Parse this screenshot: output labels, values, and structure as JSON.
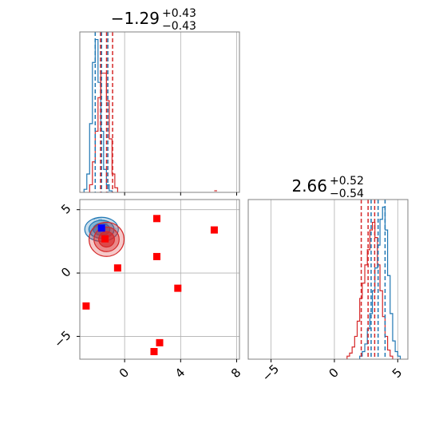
{
  "chart_data": {
    "type": "corner",
    "colors": {
      "series_a": "#1f77b4",
      "series_b": "#d62728",
      "marker_red": "#ff0000",
      "marker_blue": "#0000ff",
      "grid": "#b0b0b0",
      "axes": "#808080"
    },
    "parameters": [
      {
        "title": {
          "median": "−1.29",
          "plus": "+0.43",
          "minus": "−0.43"
        },
        "range": [
          -3.2,
          8.2
        ],
        "ticks": [
          0,
          4,
          8
        ],
        "quantiles_blue": [
          -2.1,
          -1.65,
          -1.2
        ],
        "quantiles_red": [
          -1.72,
          -1.29,
          -0.86
        ],
        "hist_blue": {
          "x0": -2.9,
          "dx": 0.2,
          "counts": [
            0.02,
            0.12,
            0.45,
            0.85,
            1.0,
            0.72,
            0.4,
            0.15,
            0.05,
            0.01
          ]
        },
        "hist_red": {
          "x0": -2.5,
          "dx": 0.2,
          "counts": [
            0.05,
            0.2,
            0.4,
            0.62,
            0.78,
            0.78,
            0.6,
            0.35,
            0.12,
            0.03
          ]
        },
        "outlier_red": {
          "x": 6.5,
          "count": 0.01
        }
      },
      {
        "title": {
          "median": "2.66",
          "plus": "+0.52",
          "minus": "−0.54"
        },
        "range": [
          -6.8,
          5.8
        ],
        "ticks": [
          -5,
          0,
          5
        ],
        "tick_labels": [
          "−5",
          "0",
          "5"
        ],
        "quantiles_blue": [
          2.9,
          3.45,
          4.0
        ],
        "quantiles_red": [
          2.12,
          2.66,
          3.18
        ],
        "hist_blue": {
          "x0": 2.0,
          "dx": 0.2,
          "counts": [
            0.02,
            0.05,
            0.1,
            0.2,
            0.3,
            0.45,
            0.6,
            0.75,
            0.92,
            1.0,
            0.85,
            0.55,
            0.3,
            0.12,
            0.05,
            0.02
          ]
        },
        "hist_red": {
          "x0": 1.0,
          "dx": 0.2,
          "counts": [
            0.02,
            0.04,
            0.08,
            0.15,
            0.25,
            0.4,
            0.5,
            0.62,
            0.72,
            0.85,
            0.9,
            0.8,
            0.62,
            0.45,
            0.28,
            0.15,
            0.06,
            0.02
          ]
        }
      }
    ],
    "scatter_ticks_y": [
      -5,
      0,
      5
    ],
    "scatter_tick_labels_y": [
      "−5",
      "0",
      "5"
    ],
    "scatter_range_y": [
      -6.8,
      5.8
    ],
    "red_squares": [
      {
        "x": -2.75,
        "y": -2.6
      },
      {
        "x": -1.4,
        "y": 2.7
      },
      {
        "x": -0.5,
        "y": 0.4
      },
      {
        "x": 2.3,
        "y": 4.3
      },
      {
        "x": 2.3,
        "y": 1.3
      },
      {
        "x": 3.8,
        "y": -1.2
      },
      {
        "x": 6.4,
        "y": 3.4
      },
      {
        "x": 2.5,
        "y": -5.5
      },
      {
        "x": 2.1,
        "y": -6.2
      }
    ],
    "blue_square": {
      "x": -1.65,
      "y": 3.55
    },
    "contour_red_center": {
      "x": -1.29,
      "y": 2.66
    },
    "contour_blue_center": {
      "x": -1.65,
      "y": 3.45
    },
    "grid": true
  }
}
